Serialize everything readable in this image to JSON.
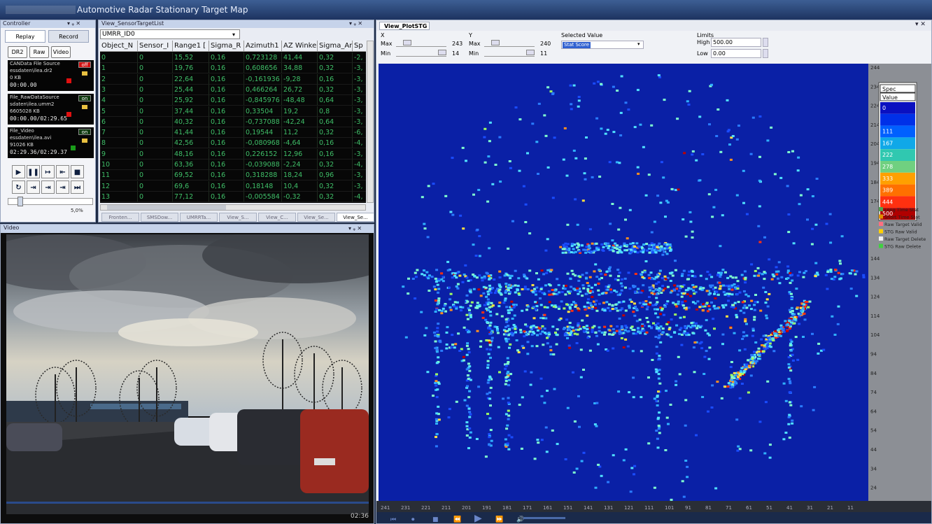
{
  "window": {
    "title": "Automotive Radar Stationary Target Map"
  },
  "controller": {
    "title": "Controller",
    "tabs": [
      "Replay",
      "Record"
    ],
    "buttons": [
      "DR2",
      "Raw",
      "Video"
    ],
    "sources": [
      {
        "name": "CANData File Source",
        "file": "essdaten\\ilea.dr2",
        "size": "0 KB",
        "time": "00:00.00",
        "state": "off"
      },
      {
        "name": "File_RawDataSource",
        "file": "sdaten\\ilea.umm2",
        "size": "6605028 KB",
        "time": "00:00.00/02:29.65",
        "state": "on"
      },
      {
        "name": "File_Video",
        "file": "essdaten\\ilea.avi",
        "size": "91026 KB",
        "time": "02:29.36/02:29.37",
        "state": "on"
      }
    ],
    "progress": "5,0%"
  },
  "target_list": {
    "title": "View_SensorTargetList",
    "sensor": "UMRR_ID0",
    "columns": [
      "Object_N",
      "Sensor_I",
      "Range1 [",
      "Sigma_R",
      "Azimuth1",
      "AZ Winkel",
      "Sigma_An",
      "Sp"
    ],
    "rows": [
      [
        "0",
        "0",
        "15,52",
        "0,16",
        "0,723128",
        "41,44",
        "0,32",
        "-2,"
      ],
      [
        "1",
        "0",
        "19,76",
        "0,16",
        "0,608656",
        "34,88",
        "0,32",
        "-3,"
      ],
      [
        "2",
        "0",
        "22,64",
        "0,16",
        "-0,161936",
        "-9,28",
        "0,16",
        "-3,"
      ],
      [
        "3",
        "0",
        "25,44",
        "0,16",
        "0,466264",
        "26,72",
        "0,32",
        "-3,"
      ],
      [
        "4",
        "0",
        "25,92",
        "0,16",
        "-0,845976",
        "-48,48",
        "0,64",
        "-3,"
      ],
      [
        "5",
        "0",
        "37,44",
        "0,16",
        "0,33504",
        "19,2",
        "0,8",
        "-3,"
      ],
      [
        "6",
        "0",
        "40,32",
        "0,16",
        "-0,737088",
        "-42,24",
        "0,64",
        "-3,"
      ],
      [
        "7",
        "0",
        "41,44",
        "0,16",
        "0,19544",
        "11,2",
        "0,32",
        "-6,"
      ],
      [
        "8",
        "0",
        "42,56",
        "0,16",
        "-0,080968",
        "-4,64",
        "0,16",
        "-4,"
      ],
      [
        "9",
        "0",
        "48,16",
        "0,16",
        "0,226152",
        "12,96",
        "0,16",
        "-3,"
      ],
      [
        "10",
        "0",
        "63,36",
        "0,16",
        "-0,039088",
        "-2,24",
        "0,32",
        "-4,"
      ],
      [
        "11",
        "0",
        "69,52",
        "0,16",
        "0,318288",
        "18,24",
        "0,96",
        "-3,"
      ],
      [
        "12",
        "0",
        "69,6",
        "0,16",
        "0,18148",
        "10,4",
        "0,32",
        "-3,"
      ],
      [
        "13",
        "0",
        "77,12",
        "0,16",
        "-0,005584",
        "-0,32",
        "0,32",
        "-4,"
      ]
    ],
    "tabs": [
      "Fronten...",
      "SMSDow...",
      "UMRRTa...",
      "View_S...",
      "View_C...",
      "View_Se...",
      "View_Se..."
    ]
  },
  "video": {
    "title": "Video",
    "time": "02:36"
  },
  "plot": {
    "title": "View_PlotSTG",
    "x": {
      "label": "X",
      "max_label": "Max",
      "max": 243,
      "min_label": "Min",
      "min": 14
    },
    "y": {
      "label": "Y",
      "max_label": "Max",
      "max": 240,
      "min_label": "Min",
      "min": 11
    },
    "selected_value": {
      "label": "Selected Value",
      "value": "Stat Score"
    },
    "limits": {
      "label": "Limits",
      "high_label": "High",
      "high": "500.00",
      "low_label": "Low",
      "low": "0.00"
    },
    "y_axis": [
      244,
      234,
      224,
      214,
      204,
      194,
      184,
      174,
      144,
      134,
      124,
      114,
      104,
      94,
      84,
      74,
      64,
      54,
      44,
      34,
      24
    ],
    "x_axis": [
      241,
      231,
      221,
      211,
      201,
      191,
      181,
      171,
      161,
      151,
      141,
      131,
      121,
      111,
      101,
      91,
      81,
      71,
      61,
      51,
      41,
      31,
      21,
      11
    ],
    "scale": {
      "headers": [
        "Spec",
        "Value"
      ],
      "labels": [
        "0",
        null,
        "111",
        "167",
        "222",
        "278",
        "333",
        "389",
        "444",
        "500"
      ]
    },
    "legend": [
      "Long Time Stat",
      "Short Time Stat",
      "Raw Target Valid",
      "STG Raw Valid",
      "Raw Target Delete",
      "STG Raw Delete"
    ]
  }
}
